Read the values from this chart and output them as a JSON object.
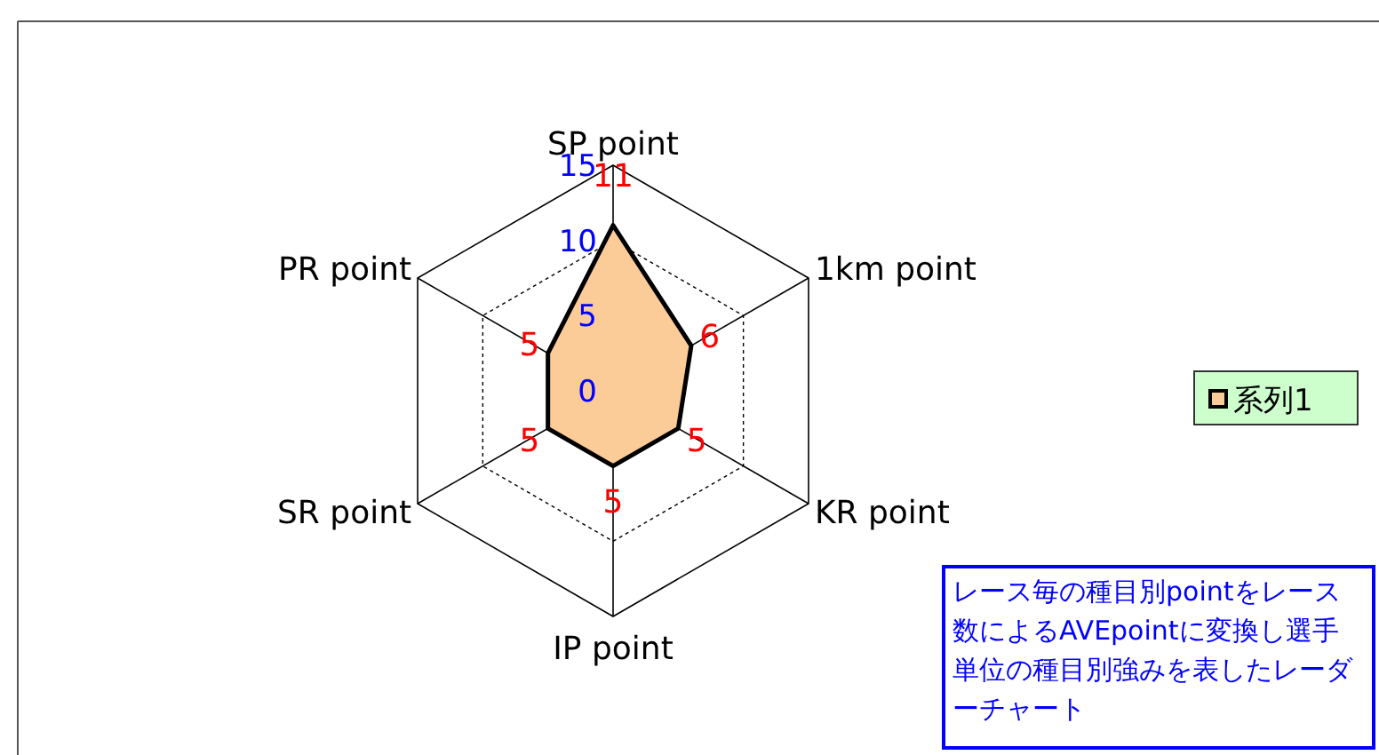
{
  "chart_data": {
    "type": "radar",
    "categories": [
      "SP point",
      "1km point",
      "KR point",
      "IP point",
      "SR point",
      "PR point"
    ],
    "series": [
      {
        "name": "系列1",
        "color": "#fbcb98",
        "values": [
          11,
          6,
          5,
          5,
          5,
          5
        ]
      }
    ],
    "ylim": [
      0,
      15
    ],
    "yticks": [
      0,
      5,
      10,
      15
    ],
    "data_labels": true,
    "legend": "right",
    "grid": true,
    "annotations": [
      "レース毎の種目別pointをレース数によるAVEpointに変換し選手単位の種目別強みを表したレーダーチャート"
    ]
  }
}
